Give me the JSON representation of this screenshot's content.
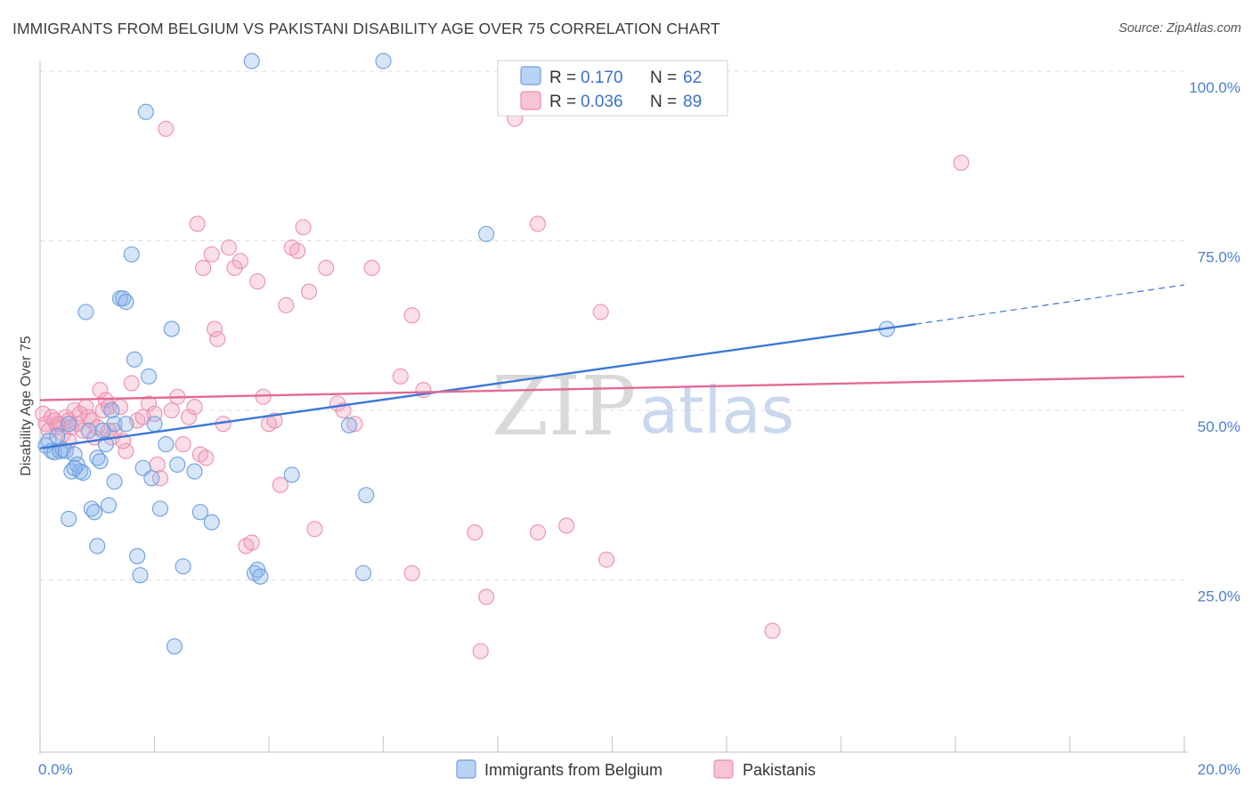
{
  "title": "IMMIGRANTS FROM BELGIUM VS PAKISTANI DISABILITY AGE OVER 75 CORRELATION CHART",
  "source": "Source: ZipAtlas.com",
  "watermark": {
    "zip": "ZIP",
    "atlas": "atlas"
  },
  "colors": {
    "blue": "#6b9fe0",
    "blue_line": "#3c78d8",
    "pink": "#ec8fb0",
    "pink_line": "#e26a96",
    "grid": "#dddddd"
  },
  "chart_data": {
    "type": "scatter",
    "title": "IMMIGRANTS FROM BELGIUM VS PAKISTANI DISABILITY AGE OVER 75 CORRELATION CHART",
    "xlabel": "",
    "ylabel": "Disability Age Over 75",
    "xlim": [
      0,
      20
    ],
    "ylim": [
      0,
      105
    ],
    "x_ticks": [
      0,
      20
    ],
    "x_tick_labels": [
      "0.0%",
      "20.0%"
    ],
    "y_ticks": [
      25,
      50,
      75,
      100
    ],
    "y_tick_labels": [
      "25.0%",
      "50.0%",
      "75.0%",
      "100.0%"
    ],
    "legend": {
      "r_label": "R =",
      "n_label": "N =",
      "entries": [
        {
          "r": "0.170",
          "n": "62"
        },
        {
          "r": "0.036",
          "n": "89"
        }
      ]
    },
    "series": [
      {
        "name": "Immigrants from Belgium",
        "color": "blue",
        "trend": {
          "x0": 0,
          "y0": 44.4,
          "x1": 15.3,
          "y1": 62.7,
          "dash_x1": 20,
          "dash_y1": 68.5
        },
        "points": [
          [
            0.1,
            44.8
          ],
          [
            0.15,
            45.5
          ],
          [
            0.2,
            44.0
          ],
          [
            0.25,
            43.8
          ],
          [
            0.3,
            46.2
          ],
          [
            0.35,
            44.0
          ],
          [
            0.4,
            44.2
          ],
          [
            0.45,
            44.0
          ],
          [
            0.5,
            48.0
          ],
          [
            0.55,
            41.0
          ],
          [
            0.6,
            43.5
          ],
          [
            0.65,
            42.0
          ],
          [
            0.7,
            41.0
          ],
          [
            0.75,
            40.8
          ],
          [
            0.8,
            64.5
          ],
          [
            0.85,
            47.0
          ],
          [
            0.9,
            35.5
          ],
          [
            0.95,
            35.0
          ],
          [
            1.0,
            30.0
          ],
          [
            1.0,
            43.0
          ],
          [
            1.1,
            47.0
          ],
          [
            1.15,
            45.0
          ],
          [
            1.2,
            36.0
          ],
          [
            1.25,
            50.0
          ],
          [
            1.3,
            39.5
          ],
          [
            1.3,
            48.0
          ],
          [
            1.4,
            66.5
          ],
          [
            1.45,
            66.5
          ],
          [
            1.5,
            66.0
          ],
          [
            1.5,
            48.0
          ],
          [
            1.6,
            73.0
          ],
          [
            1.65,
            57.5
          ],
          [
            1.7,
            28.5
          ],
          [
            1.75,
            25.7
          ],
          [
            1.8,
            41.5
          ],
          [
            1.85,
            94.0
          ],
          [
            1.9,
            55.0
          ],
          [
            1.95,
            40.0
          ],
          [
            2.0,
            48.0
          ],
          [
            2.1,
            35.5
          ],
          [
            2.2,
            45.0
          ],
          [
            2.3,
            62.0
          ],
          [
            2.4,
            42.0
          ],
          [
            2.5,
            27.0
          ],
          [
            2.7,
            41.0
          ],
          [
            2.8,
            35.0
          ],
          [
            3.0,
            33.5
          ],
          [
            3.7,
            101.5
          ],
          [
            3.75,
            26.0
          ],
          [
            3.8,
            26.5
          ],
          [
            3.85,
            25.5
          ],
          [
            4.4,
            40.5
          ],
          [
            5.4,
            47.8
          ],
          [
            5.65,
            26.0
          ],
          [
            5.7,
            37.5
          ],
          [
            6.0,
            101.5
          ],
          [
            7.8,
            76.0
          ],
          [
            14.8,
            62.0
          ],
          [
            2.35,
            15.2
          ],
          [
            0.6,
            41.5
          ],
          [
            1.05,
            42.5
          ],
          [
            0.5,
            34.0
          ]
        ]
      },
      {
        "name": "Pakistanis",
        "color": "pink",
        "trend": {
          "x0": 0,
          "y0": 51.5,
          "x1": 20,
          "y1": 55.0
        },
        "points": [
          [
            0.05,
            49.5
          ],
          [
            0.1,
            48.0
          ],
          [
            0.15,
            47.0
          ],
          [
            0.2,
            49.0
          ],
          [
            0.25,
            48.5
          ],
          [
            0.3,
            47.5
          ],
          [
            0.35,
            48.0
          ],
          [
            0.4,
            46.5
          ],
          [
            0.45,
            49.0
          ],
          [
            0.5,
            48.5
          ],
          [
            0.55,
            47.5
          ],
          [
            0.6,
            50.0
          ],
          [
            0.65,
            48.0
          ],
          [
            0.7,
            49.5
          ],
          [
            0.75,
            47.0
          ],
          [
            0.8,
            50.5
          ],
          [
            0.85,
            49.0
          ],
          [
            0.9,
            48.5
          ],
          [
            0.95,
            46.0
          ],
          [
            1.0,
            47.5
          ],
          [
            1.05,
            53.0
          ],
          [
            1.1,
            50.0
          ],
          [
            1.15,
            51.5
          ],
          [
            1.2,
            50.5
          ],
          [
            1.25,
            46.0
          ],
          [
            1.3,
            47.0
          ],
          [
            1.4,
            50.5
          ],
          [
            1.5,
            44.0
          ],
          [
            1.6,
            54.0
          ],
          [
            1.7,
            48.5
          ],
          [
            1.8,
            49.0
          ],
          [
            1.9,
            51.0
          ],
          [
            2.0,
            49.5
          ],
          [
            2.05,
            42.0
          ],
          [
            2.1,
            40.0
          ],
          [
            2.2,
            91.5
          ],
          [
            2.3,
            50.0
          ],
          [
            2.4,
            52.0
          ],
          [
            2.5,
            45.0
          ],
          [
            2.6,
            49.0
          ],
          [
            2.7,
            50.5
          ],
          [
            2.8,
            43.5
          ],
          [
            2.75,
            77.5
          ],
          [
            2.85,
            71.0
          ],
          [
            3.0,
            73.0
          ],
          [
            3.05,
            62.0
          ],
          [
            3.1,
            60.5
          ],
          [
            3.2,
            48.0
          ],
          [
            3.3,
            74.0
          ],
          [
            3.4,
            71.0
          ],
          [
            3.5,
            72.0
          ],
          [
            3.6,
            30.0
          ],
          [
            3.7,
            30.5
          ],
          [
            3.8,
            69.0
          ],
          [
            3.9,
            52.0
          ],
          [
            4.0,
            48.0
          ],
          [
            4.1,
            48.5
          ],
          [
            4.2,
            39.0
          ],
          [
            4.3,
            65.5
          ],
          [
            4.4,
            74.0
          ],
          [
            4.5,
            73.5
          ],
          [
            4.6,
            77.0
          ],
          [
            4.7,
            67.5
          ],
          [
            4.8,
            32.5
          ],
          [
            5.0,
            71.0
          ],
          [
            5.2,
            51.0
          ],
          [
            5.3,
            50.0
          ],
          [
            5.5,
            48.0
          ],
          [
            5.8,
            71.0
          ],
          [
            6.3,
            55.0
          ],
          [
            6.5,
            64.0
          ],
          [
            6.7,
            53.0
          ],
          [
            6.5,
            26.0
          ],
          [
            7.6,
            32.0
          ],
          [
            7.8,
            22.5
          ],
          [
            7.7,
            14.5
          ],
          [
            8.3,
            93.0
          ],
          [
            8.7,
            77.5
          ],
          [
            8.7,
            32.0
          ],
          [
            9.2,
            33.0
          ],
          [
            9.8,
            64.5
          ],
          [
            9.9,
            28.0
          ],
          [
            12.8,
            17.5
          ],
          [
            16.1,
            86.5
          ],
          [
            0.3,
            48.0
          ],
          [
            0.5,
            45.5
          ],
          [
            1.45,
            45.5
          ],
          [
            2.9,
            43.0
          ],
          [
            1.2,
            47.0
          ]
        ]
      }
    ]
  }
}
